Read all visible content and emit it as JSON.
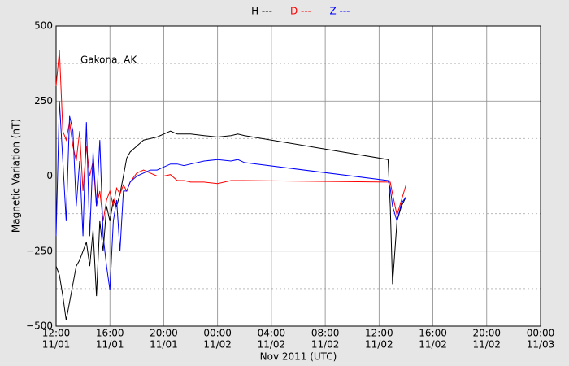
{
  "chart_data": {
    "type": "line",
    "annotation": "Gakona, AK",
    "x_label": "Nov 2011 (UTC)",
    "y_label": "Magnetic Variation (nT)",
    "x": [
      "2011-11-01 12:00",
      "2011-11-01 12:15",
      "2011-11-01 12:30",
      "2011-11-01 12:45",
      "2011-11-01 13:00",
      "2011-11-01 13:15",
      "2011-11-01 13:30",
      "2011-11-01 13:45",
      "2011-11-01 14:00",
      "2011-11-01 14:15",
      "2011-11-01 14:30",
      "2011-11-01 14:45",
      "2011-11-01 15:00",
      "2011-11-01 15:15",
      "2011-11-01 15:30",
      "2011-11-01 15:45",
      "2011-11-01 16:00",
      "2011-11-01 16:15",
      "2011-11-01 16:30",
      "2011-11-01 16:45",
      "2011-11-01 17:00",
      "2011-11-01 17:15",
      "2011-11-01 17:30",
      "2011-11-01 18:00",
      "2011-11-01 18:30",
      "2011-11-01 19:00",
      "2011-11-01 19:30",
      "2011-11-01 20:00",
      "2011-11-01 20:30",
      "2011-11-01 21:00",
      "2011-11-01 21:30",
      "2011-11-01 22:00",
      "2011-11-01 23:00",
      "2011-11-02 00:00",
      "2011-11-02 01:00",
      "2011-11-02 01:30",
      "2011-11-02 02:00",
      "2011-11-02 12:40",
      "2011-11-02 12:50",
      "2011-11-02 13:00",
      "2011-11-02 13:20",
      "2011-11-02 13:40",
      "2011-11-02 14:00"
    ],
    "series": [
      {
        "name": "H ---",
        "color": "#000000",
        "values": [
          -300,
          -330,
          -400,
          -480,
          -420,
          -360,
          -300,
          -280,
          -250,
          -220,
          -300,
          -180,
          -400,
          -150,
          -250,
          -100,
          -150,
          -80,
          -100,
          -60,
          0,
          60,
          80,
          100,
          120,
          125,
          130,
          140,
          150,
          140,
          140,
          140,
          135,
          130,
          135,
          140,
          135,
          55,
          -100,
          -360,
          -150,
          -100,
          -70
        ]
      },
      {
        "name": "D ---",
        "color": "#ff0000",
        "values": [
          300,
          420,
          150,
          120,
          180,
          100,
          50,
          150,
          -50,
          100,
          0,
          50,
          -100,
          -50,
          -150,
          -80,
          -50,
          -100,
          -40,
          -60,
          -30,
          -50,
          -20,
          10,
          20,
          10,
          0,
          0,
          5,
          -15,
          -15,
          -20,
          -20,
          -25,
          -15,
          -15,
          -15,
          -20,
          -20,
          -60,
          -130,
          -80,
          -30
        ]
      },
      {
        "name": "Z ---",
        "color": "#0000ff",
        "values": [
          -200,
          250,
          50,
          -150,
          200,
          150,
          -100,
          50,
          -200,
          180,
          -200,
          80,
          -100,
          120,
          -200,
          -300,
          -380,
          -150,
          -80,
          -250,
          -50,
          -50,
          -20,
          0,
          10,
          20,
          20,
          30,
          40,
          40,
          35,
          40,
          50,
          55,
          50,
          55,
          45,
          -15,
          -40,
          -100,
          -150,
          -90,
          -70
        ]
      }
    ],
    "xlim": [
      "2011-11-01 12:00",
      "2011-11-03 00:00"
    ],
    "xticks": [
      {
        "value": "2011-11-01 12:00",
        "label": [
          "12:00",
          "11/01"
        ]
      },
      {
        "value": "2011-11-01 16:00",
        "label": [
          "16:00",
          "11/01"
        ]
      },
      {
        "value": "2011-11-01 20:00",
        "label": [
          "20:00",
          "11/01"
        ]
      },
      {
        "value": "2011-11-02 00:00",
        "label": [
          "00:00",
          "11/02"
        ]
      },
      {
        "value": "2011-11-02 04:00",
        "label": [
          "04:00",
          "11/02"
        ]
      },
      {
        "value": "2011-11-02 08:00",
        "label": [
          "08:00",
          "11/02"
        ]
      },
      {
        "value": "2011-11-02 12:00",
        "label": [
          "12:00",
          "11/02"
        ]
      },
      {
        "value": "2011-11-02 16:00",
        "label": [
          "16:00",
          "11/02"
        ]
      },
      {
        "value": "2011-11-02 20:00",
        "label": [
          "20:00",
          "11/02"
        ]
      },
      {
        "value": "2011-11-03 00:00",
        "label": [
          "00:00",
          "11/03"
        ]
      }
    ],
    "ylim": [
      -500,
      500
    ],
    "yticks": [
      500,
      250,
      0,
      {
        "value": -250,
        "label": "−250"
      },
      {
        "value": -500,
        "label": "−500"
      }
    ],
    "yminorticks": [
      -375,
      -125,
      125,
      375
    ],
    "grid": true
  }
}
